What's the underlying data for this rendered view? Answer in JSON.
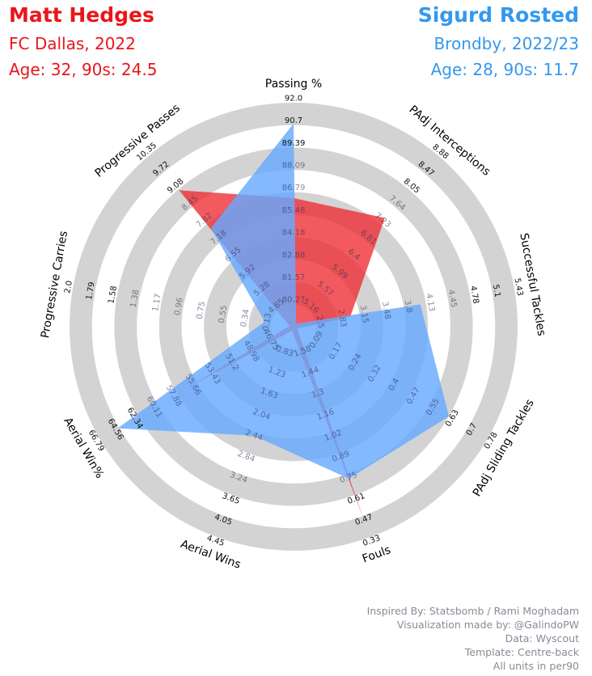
{
  "header": {
    "player1": {
      "name": "Matt Hedges",
      "club": "FC Dallas, 2022",
      "info": "Age: 32, 90s: 24.5",
      "color": "#e8161b"
    },
    "player2": {
      "name": "Sigurd Rosted",
      "club": "Brondby, 2022/23",
      "info": "Age: 28, 90s: 11.7",
      "color": "#3399ee"
    }
  },
  "credits": [
    "Inspired By: Statsbomb / Rami Moghadam",
    "Visualization made by: @GalindoPW",
    "Data: Wyscout",
    "Template: Centre-back",
    "All units in per90"
  ],
  "chart_data": {
    "type": "radar",
    "ring_color": "#d3d3d3",
    "player1_fill": "#ee2b32",
    "player2_fill": "#66aaff",
    "parameters": [
      "Passing %",
      "PAdj Interceptions",
      "Successful Tackles",
      "PAdj Sliding Tackles",
      "Fouls",
      "Aerial Wins",
      "Aerial Win%",
      "Progressive Carries",
      "Progressive Passes"
    ],
    "scales": [
      [
        "80.27",
        "81.57",
        "82.88",
        "84.18",
        "85.48",
        "86.79",
        "88.09",
        "89.39",
        "90.7",
        "92.0"
      ],
      [
        "5.16",
        "5.57",
        "5.99",
        "6.4",
        "6.81",
        "7.23",
        "7.64",
        "8.05",
        "8.47",
        "8.88"
      ],
      [
        "2.5",
        "2.83",
        "3.15",
        "3.48",
        "3.8",
        "4.13",
        "4.45",
        "4.78",
        "5.1",
        "5.43"
      ],
      [
        "0.09",
        "0.17",
        "0.24",
        "0.32",
        "0.4",
        "0.47",
        "0.55",
        "0.63",
        "0.7",
        "0.78"
      ],
      [
        "1.58",
        "1.44",
        "1.3",
        "1.16",
        "1.02",
        "0.89",
        "0.75",
        "0.61",
        "0.47",
        "0.33"
      ],
      [
        "0.83",
        "1.23",
        "1.63",
        "2.04",
        "2.44",
        "2.84",
        "3.24",
        "3.65",
        "4.05",
        "4.45"
      ],
      [
        "46.75",
        "48.98",
        "51.2",
        "53.43",
        "55.66",
        "57.88",
        "60.11",
        "62.34",
        "64.56",
        "66.79"
      ],
      [
        "0.13",
        "0.34",
        "0.55",
        "0.75",
        "0.96",
        "1.17",
        "1.38",
        "1.58",
        "1.79",
        "2.0"
      ],
      [
        "4.65",
        "5.28",
        "5.92",
        "6.55",
        "7.18",
        "7.82",
        "8.45",
        "9.08",
        "9.72",
        "10.35"
      ]
    ],
    "series": [
      {
        "name": "Matt Hedges",
        "values": [
          86.79,
          7.45,
          3.2,
          0.09,
          0.46,
          0.83,
          57.3,
          0.13,
          9.08
        ]
      },
      {
        "name": "Sigurd Rosted",
        "values": [
          90.7,
          5.16,
          4.13,
          0.63,
          0.7,
          2.64,
          64.56,
          0.34,
          7.82
        ]
      }
    ]
  }
}
